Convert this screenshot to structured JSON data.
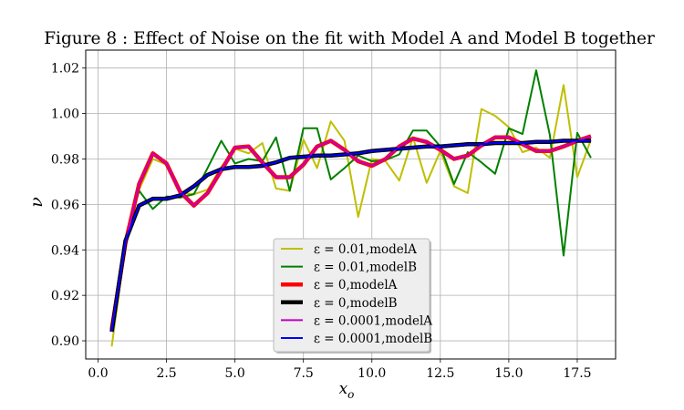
{
  "chart_data": {
    "type": "line",
    "title": "Figure 8 : Effect of Noise on the fit with Model A and Model B together",
    "xlabel": "x",
    "xlabel_sub": "o",
    "ylabel": "ν",
    "xlim": [
      -0.45,
      18.9
    ],
    "ylim": [
      0.892,
      1.0279
    ],
    "xticks": [
      0.0,
      2.5,
      5.0,
      7.5,
      10.0,
      12.5,
      15.0,
      17.5
    ],
    "xtick_labels": [
      "0.0",
      "2.5",
      "5.0",
      "7.5",
      "10.0",
      "12.5",
      "15.0",
      "17.5"
    ],
    "yticks": [
      0.9,
      0.92,
      0.94,
      0.96,
      0.98,
      1.0,
      1.02
    ],
    "ytick_labels": [
      "0.90",
      "0.92",
      "0.94",
      "0.96",
      "0.98",
      "1.00",
      "1.02"
    ],
    "grid": true,
    "legend_position": "lower-center",
    "x": [
      0.5,
      1.0,
      1.5,
      2.0,
      2.5,
      3.0,
      3.5,
      4.0,
      4.5,
      5.0,
      5.5,
      6.0,
      6.5,
      7.0,
      7.5,
      8.0,
      8.5,
      9.0,
      9.5,
      10.0,
      10.5,
      11.0,
      11.5,
      12.0,
      12.5,
      13.0,
      13.5,
      14.0,
      14.5,
      15.0,
      15.5,
      16.0,
      16.5,
      17.0,
      17.5,
      18.0
    ],
    "series": [
      {
        "name": "ε = 0.01,modelA",
        "color": "#bfbf00",
        "width": 2,
        "values": [
          0.8975,
          0.942,
          0.9665,
          0.98,
          0.9775,
          0.965,
          0.9645,
          0.9665,
          0.9765,
          0.9845,
          0.9825,
          0.987,
          0.967,
          0.966,
          0.9885,
          0.976,
          0.9965,
          0.988,
          0.9545,
          0.98,
          0.979,
          0.9705,
          0.9895,
          0.9695,
          0.9835,
          0.968,
          0.965,
          1.002,
          0.999,
          0.994,
          0.983,
          0.985,
          0.9805,
          1.0125,
          0.972,
          0.9885
        ]
      },
      {
        "name": "ε = 0.01,modelB",
        "color": "#008000",
        "width": 2,
        "values": [
          0.9045,
          0.945,
          0.966,
          0.958,
          0.9635,
          0.963,
          0.9645,
          0.976,
          0.988,
          0.978,
          0.98,
          0.979,
          0.9895,
          0.966,
          0.9935,
          0.9935,
          0.971,
          0.976,
          0.9815,
          0.979,
          0.9795,
          0.982,
          0.9925,
          0.9925,
          0.9855,
          0.969,
          0.983,
          0.9785,
          0.9735,
          0.9935,
          0.991,
          1.019,
          0.9905,
          0.9375,
          0.9915,
          0.9805
        ]
      },
      {
        "name": "ε = 0,modelA",
        "color": "#ff0000",
        "width": 4.5,
        "values": [
          0.905,
          0.943,
          0.969,
          0.9825,
          0.978,
          0.9655,
          0.9595,
          0.965,
          0.975,
          0.985,
          0.9855,
          0.9785,
          0.972,
          0.972,
          0.9775,
          0.9855,
          0.988,
          0.984,
          0.979,
          0.977,
          0.98,
          0.9855,
          0.989,
          0.9875,
          0.984,
          0.98,
          0.9815,
          0.986,
          0.9895,
          0.9895,
          0.9865,
          0.9835,
          0.9835,
          0.9855,
          0.988,
          0.99
        ]
      },
      {
        "name": "ε = 0,modelB",
        "color": "#000000",
        "width": 4.5,
        "values": [
          0.904,
          0.944,
          0.9595,
          0.9625,
          0.9625,
          0.964,
          0.968,
          0.973,
          0.9755,
          0.9765,
          0.9765,
          0.977,
          0.9785,
          0.9805,
          0.981,
          0.9815,
          0.9815,
          0.982,
          0.9825,
          0.9835,
          0.984,
          0.9845,
          0.985,
          0.9855,
          0.9855,
          0.986,
          0.9865,
          0.9865,
          0.987,
          0.987,
          0.987,
          0.9875,
          0.9875,
          0.988,
          0.988,
          0.988
        ]
      },
      {
        "name": "ε = 0.0001,modelA",
        "color": "#c000c0",
        "width": 2,
        "values": [
          0.905,
          0.943,
          0.969,
          0.9825,
          0.978,
          0.9655,
          0.9595,
          0.965,
          0.975,
          0.985,
          0.9855,
          0.9785,
          0.972,
          0.972,
          0.9775,
          0.9855,
          0.988,
          0.984,
          0.979,
          0.977,
          0.98,
          0.9855,
          0.989,
          0.9875,
          0.984,
          0.98,
          0.9815,
          0.986,
          0.9895,
          0.9895,
          0.9865,
          0.9835,
          0.9835,
          0.9855,
          0.988,
          0.99
        ]
      },
      {
        "name": "ε = 0.0001,modelB",
        "color": "#0000ff",
        "width": 2,
        "values": [
          0.904,
          0.944,
          0.9595,
          0.9625,
          0.9625,
          0.964,
          0.968,
          0.973,
          0.9755,
          0.9765,
          0.9765,
          0.977,
          0.9785,
          0.9805,
          0.981,
          0.9815,
          0.9815,
          0.982,
          0.9825,
          0.9835,
          0.984,
          0.9845,
          0.985,
          0.9855,
          0.9855,
          0.986,
          0.9865,
          0.9865,
          0.987,
          0.987,
          0.987,
          0.9875,
          0.9875,
          0.988,
          0.988,
          0.988
        ]
      }
    ]
  }
}
